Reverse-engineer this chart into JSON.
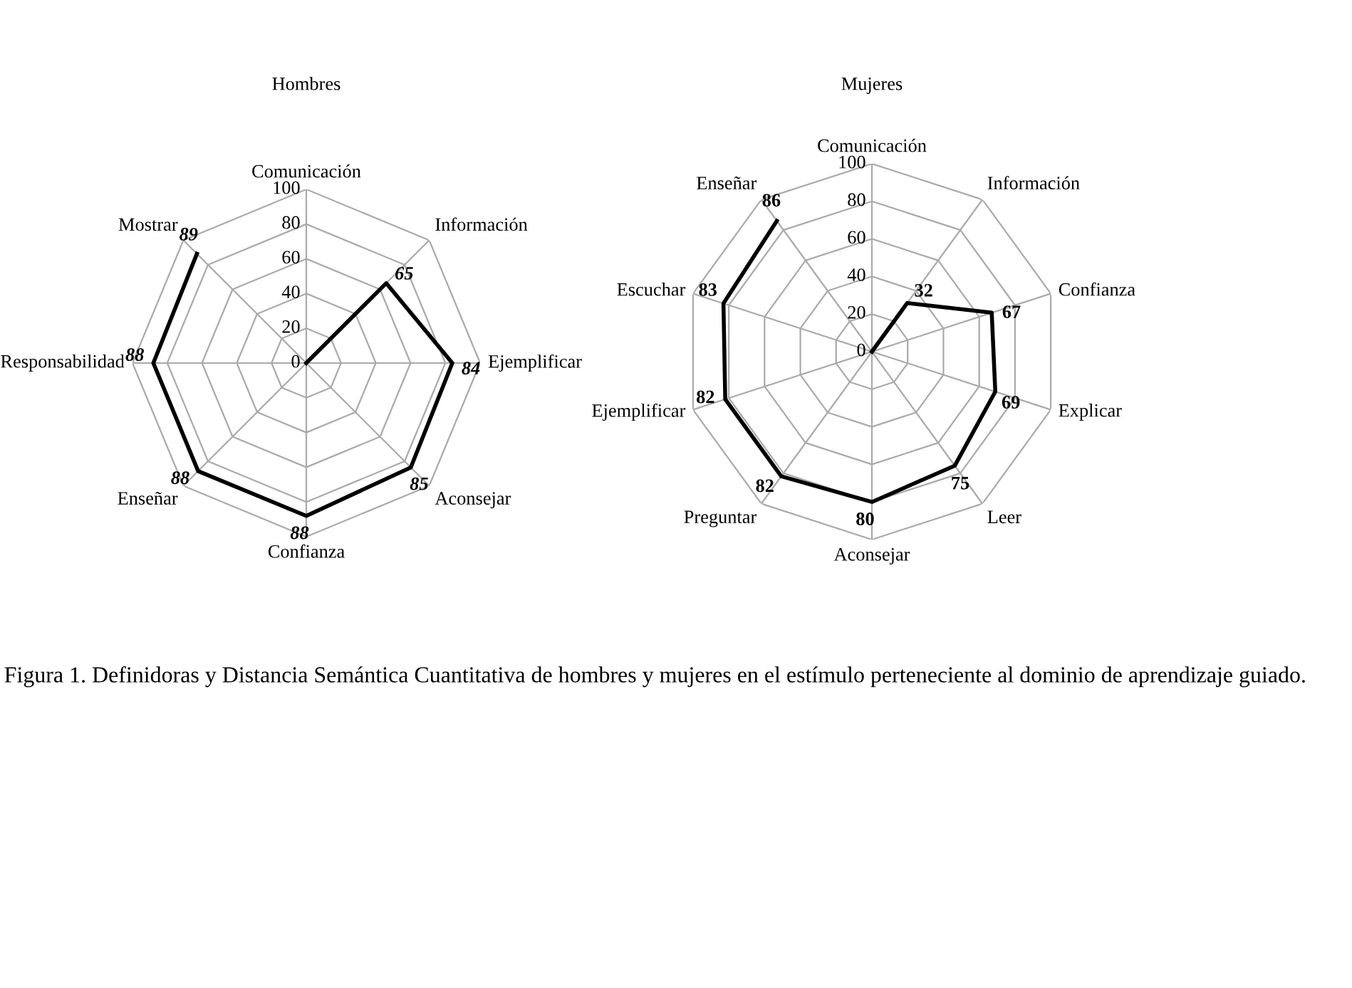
{
  "chart_data": [
    {
      "type": "radar",
      "title": "Hombres",
      "categories": [
        "Comunicación",
        "Información",
        "Ejemplificar",
        "Aconsejar",
        "Confianza",
        "Enseñar",
        "Responsabilidad",
        "Mostrar"
      ],
      "series": [
        {
          "color": "#000000",
          "values": [
            0,
            65,
            84,
            85,
            88,
            88,
            88,
            89
          ],
          "value_labels": [
            null,
            "65",
            "84",
            "85",
            "88",
            "88",
            "88",
            "89"
          ]
        }
      ],
      "ylim": [
        0,
        100
      ],
      "yticks": [
        0,
        20,
        40,
        60,
        80,
        100
      ],
      "grid": true,
      "marker": "none",
      "line_style": "solid"
    },
    {
      "type": "radar",
      "title": "Mujeres",
      "categories": [
        "Comunicación",
        "Información",
        "Confianza",
        "Explicar",
        "Leer",
        "Aconsejar",
        "Preguntar",
        "Ejemplificar",
        "Escuchar",
        "Enseñar"
      ],
      "series": [
        {
          "color": "#000000",
          "values": [
            0,
            32,
            67,
            69,
            75,
            80,
            82,
            82,
            83,
            86
          ],
          "value_labels": [
            null,
            "32",
            "67",
            "69",
            "75",
            "80",
            "82",
            "82",
            "83",
            "86"
          ]
        }
      ],
      "ylim": [
        0,
        100
      ],
      "yticks": [
        0,
        20,
        40,
        60,
        80,
        100
      ],
      "grid": true,
      "marker": "none",
      "line_style": "solid",
      "annotations": [
        "Figura 1. Definidoras y Distancia Semántica Cuantitativa de hombres y mujeres en el estímulo perteneciente al dominio de aprendizaje guiado."
      ]
    }
  ]
}
